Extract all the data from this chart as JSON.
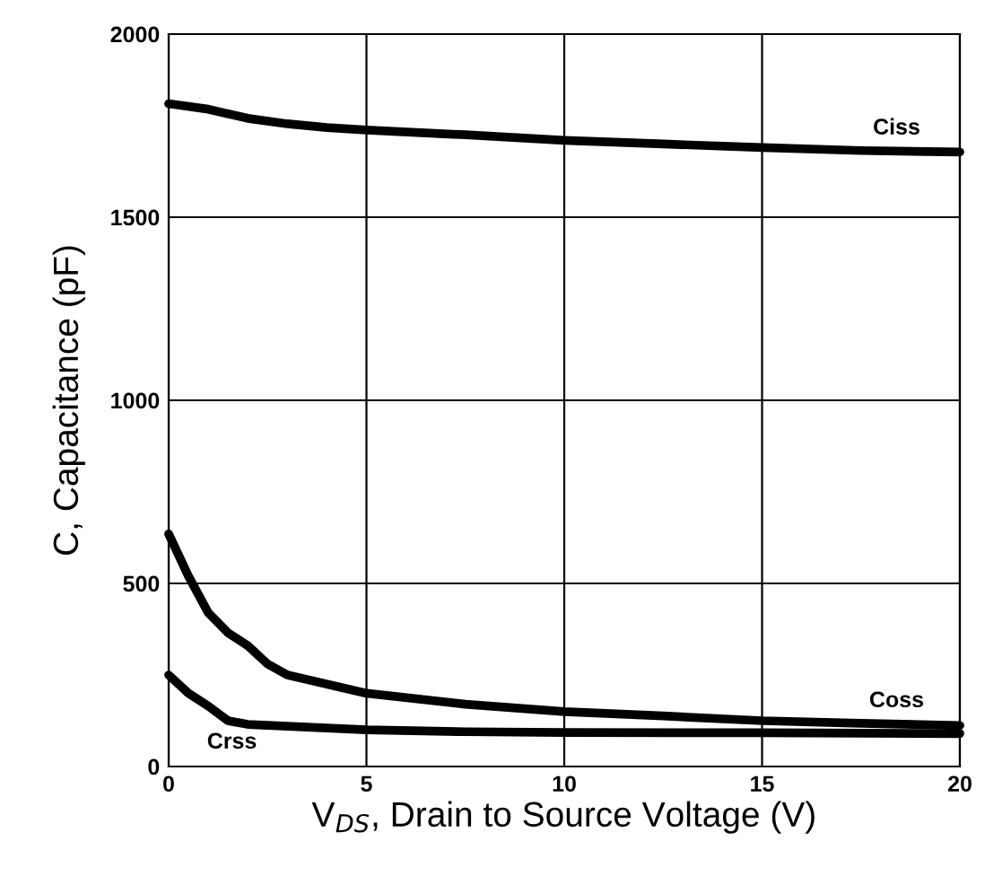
{
  "chart_data": {
    "type": "line",
    "xlabel": "V$_{DS}$, Drain to Source Voltage (V)",
    "ylabel": "C, Capacitance (pF)",
    "xlim": [
      0,
      20
    ],
    "xticks": [
      0,
      5,
      10,
      15,
      20
    ],
    "ylim": [
      0,
      2000
    ],
    "yticks": [
      0,
      500,
      1000,
      1500,
      2000
    ],
    "grid": true,
    "legend": false,
    "marker": "none",
    "line_style": "solid",
    "series": [
      {
        "name": "Ciss",
        "color": "#000000",
        "x": [
          0,
          1,
          2,
          3,
          4,
          5,
          7.5,
          10,
          12.5,
          15,
          17.5,
          20
        ],
        "values": [
          1810,
          1795,
          1770,
          1755,
          1745,
          1738,
          1725,
          1710,
          1700,
          1690,
          1682,
          1678
        ]
      },
      {
        "name": "Coss",
        "color": "#000000",
        "x": [
          0,
          0.5,
          1,
          1.5,
          2,
          2.5,
          3,
          4,
          5,
          7.5,
          10,
          12.5,
          15,
          17.5,
          20
        ],
        "values": [
          635,
          520,
          420,
          365,
          330,
          280,
          250,
          225,
          200,
          170,
          150,
          138,
          125,
          118,
          112
        ]
      },
      {
        "name": "Crss",
        "color": "#000000",
        "x": [
          0,
          0.5,
          1,
          1.5,
          2,
          3,
          5,
          7.5,
          10,
          15,
          20
        ],
        "values": [
          250,
          200,
          165,
          125,
          115,
          110,
          100,
          95,
          93,
          92,
          90
        ]
      }
    ]
  }
}
